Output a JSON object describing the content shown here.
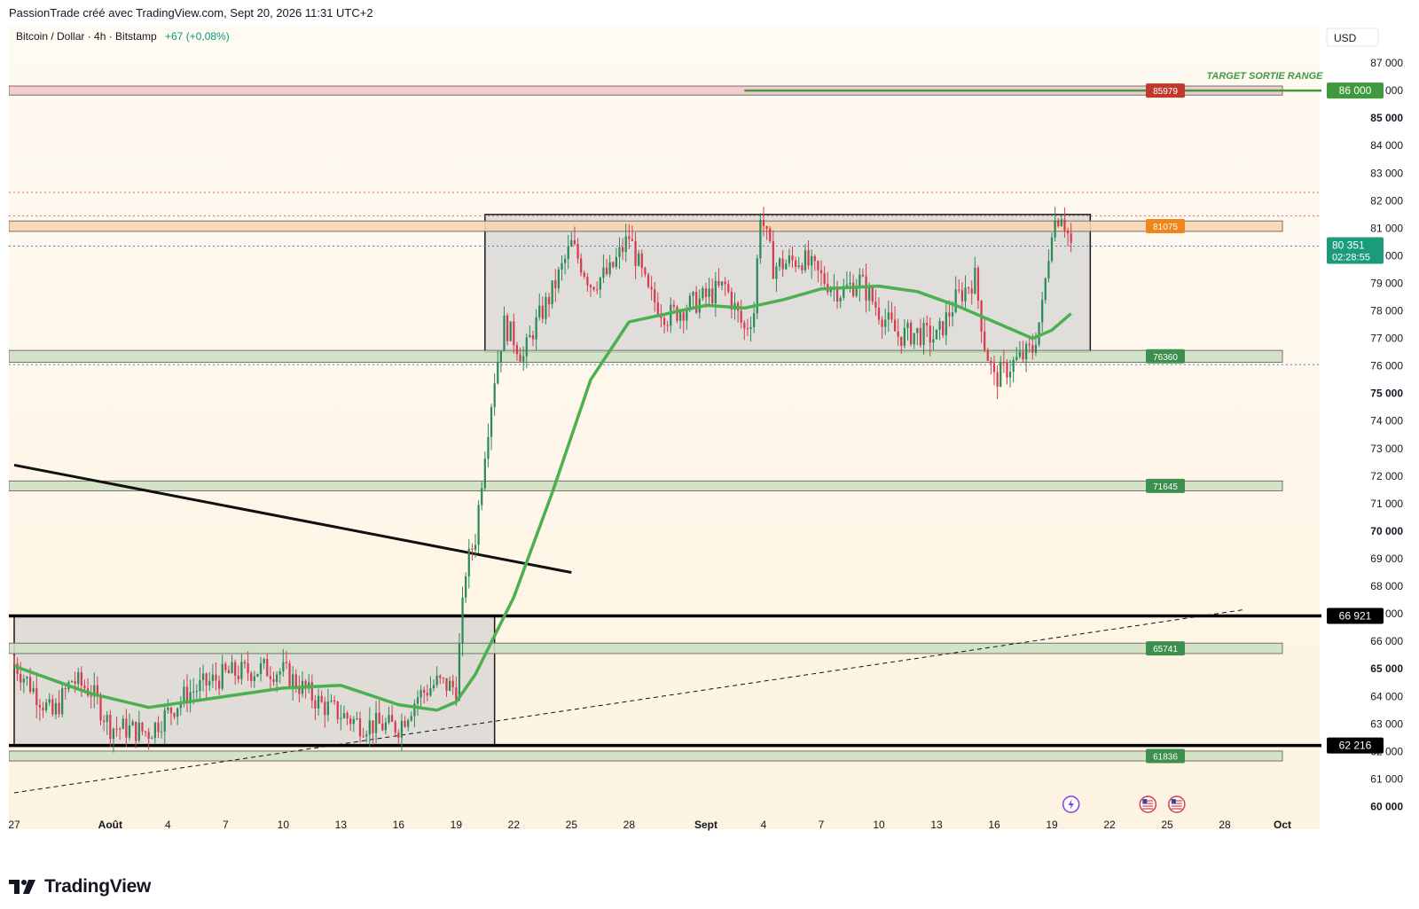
{
  "header": {
    "attribution": "PassionTrade créé avec TradingView.com, Sept 20, 2026 11:31 UTC+2"
  },
  "footer": {
    "logo_text": "TradingView"
  },
  "colors": {
    "background": "#fdf3e1",
    "candle_up": "#2c8a56",
    "candle_down": "#d63b4e",
    "moving_average": "#4caf50",
    "zone_green": "#cfe0c4",
    "zone_red": "#f2c7cc",
    "zone_orange": "#f7d5b4",
    "range_box": "#d3d3d3",
    "target_line": "#3f9a3f",
    "label_green": "#3c8f4d",
    "label_red": "#c0392b",
    "label_orange": "#f0851a",
    "current_price": "#1b9b7a"
  },
  "chart_data": {
    "type": "candlestick",
    "symbol": "Bitcoin / Dollar · 4h · Bitstamp",
    "change": "+67 (+0,08%)",
    "currency": "USD",
    "y_axis": {
      "ylim": [
        59500,
        88000
      ],
      "ticks": [
        60000,
        61000,
        62000,
        63000,
        64000,
        65000,
        66000,
        67000,
        68000,
        69000,
        70000,
        71000,
        72000,
        73000,
        74000,
        75000,
        76000,
        77000,
        78000,
        79000,
        80000,
        81000,
        82000,
        83000,
        84000,
        85000,
        86000,
        87000
      ],
      "bold_ticks": [
        60000,
        65000,
        70000,
        75000,
        85000
      ],
      "tick_format": "space-thousands"
    },
    "x_axis": {
      "start_date": "2026-07-27",
      "end_date": "2026-10-01",
      "ticks": [
        {
          "date": "2026-07-27",
          "label": "27",
          "bold": false
        },
        {
          "date": "2026-08-01",
          "label": "Août",
          "bold": true
        },
        {
          "date": "2026-08-04",
          "label": "4",
          "bold": false
        },
        {
          "date": "2026-08-07",
          "label": "7",
          "bold": false
        },
        {
          "date": "2026-08-10",
          "label": "10",
          "bold": false
        },
        {
          "date": "2026-08-13",
          "label": "13",
          "bold": false
        },
        {
          "date": "2026-08-16",
          "label": "16",
          "bold": false
        },
        {
          "date": "2026-08-19",
          "label": "19",
          "bold": false
        },
        {
          "date": "2026-08-22",
          "label": "22",
          "bold": false
        },
        {
          "date": "2026-08-25",
          "label": "25",
          "bold": false
        },
        {
          "date": "2026-08-28",
          "label": "28",
          "bold": false
        },
        {
          "date": "2026-09-01",
          "label": "Sept",
          "bold": true
        },
        {
          "date": "2026-09-04",
          "label": "4",
          "bold": false
        },
        {
          "date": "2026-09-07",
          "label": "7",
          "bold": false
        },
        {
          "date": "2026-09-10",
          "label": "10",
          "bold": false
        },
        {
          "date": "2026-09-13",
          "label": "13",
          "bold": false
        },
        {
          "date": "2026-09-16",
          "label": "16",
          "bold": false
        },
        {
          "date": "2026-09-19",
          "label": "19",
          "bold": false
        },
        {
          "date": "2026-09-22",
          "label": "22",
          "bold": false
        },
        {
          "date": "2026-09-25",
          "label": "25",
          "bold": false
        },
        {
          "date": "2026-09-28",
          "label": "28",
          "bold": false
        },
        {
          "date": "2026-10-01",
          "label": "Oct",
          "bold": true
        }
      ]
    },
    "price_path": [
      {
        "date": "2026-07-27",
        "price": 65200
      },
      {
        "date": "2026-07-29",
        "price": 63300
      },
      {
        "date": "2026-07-30",
        "price": 64600
      },
      {
        "date": "2026-07-31",
        "price": 64200
      },
      {
        "date": "2026-08-01",
        "price": 62900
      },
      {
        "date": "2026-08-03",
        "price": 62700
      },
      {
        "date": "2026-08-05",
        "price": 64100
      },
      {
        "date": "2026-08-07",
        "price": 64800
      },
      {
        "date": "2026-08-09",
        "price": 65000
      },
      {
        "date": "2026-08-10",
        "price": 64900
      },
      {
        "date": "2026-08-11",
        "price": 64300
      },
      {
        "date": "2026-08-12",
        "price": 63700
      },
      {
        "date": "2026-08-14",
        "price": 63000
      },
      {
        "date": "2026-08-16",
        "price": 62900
      },
      {
        "date": "2026-08-17",
        "price": 64000
      },
      {
        "date": "2026-08-18",
        "price": 64500
      },
      {
        "date": "2026-08-19",
        "price": 64300
      },
      {
        "date": "2026-08-19T12:00",
        "price": 68600
      },
      {
        "date": "2026-08-20",
        "price": 69800
      },
      {
        "date": "2026-08-20T12:00",
        "price": 73000
      },
      {
        "date": "2026-08-21",
        "price": 75600
      },
      {
        "date": "2026-08-21T12:00",
        "price": 77500
      },
      {
        "date": "2026-08-22",
        "price": 77000
      },
      {
        "date": "2026-08-22T12:00",
        "price": 76300
      },
      {
        "date": "2026-08-23",
        "price": 77300
      },
      {
        "date": "2026-08-24",
        "price": 78700
      },
      {
        "date": "2026-08-25",
        "price": 80400
      },
      {
        "date": "2026-08-26",
        "price": 79000
      },
      {
        "date": "2026-08-27",
        "price": 79400
      },
      {
        "date": "2026-08-28",
        "price": 80700
      },
      {
        "date": "2026-08-29",
        "price": 78600
      },
      {
        "date": "2026-08-30",
        "price": 77800
      },
      {
        "date": "2026-09-01",
        "price": 78500
      },
      {
        "date": "2026-09-02",
        "price": 78900
      },
      {
        "date": "2026-09-03",
        "price": 77300
      },
      {
        "date": "2026-09-03T12:00",
        "price": 78000
      },
      {
        "date": "2026-09-03T20:00",
        "price": 81600
      },
      {
        "date": "2026-09-04",
        "price": 81100
      },
      {
        "date": "2026-09-04T12:00",
        "price": 79600
      },
      {
        "date": "2026-09-06",
        "price": 79900
      },
      {
        "date": "2026-09-07",
        "price": 79200
      },
      {
        "date": "2026-09-08",
        "price": 78700
      },
      {
        "date": "2026-09-09",
        "price": 79100
      },
      {
        "date": "2026-09-10",
        "price": 78000
      },
      {
        "date": "2026-09-11",
        "price": 77100
      },
      {
        "date": "2026-09-12",
        "price": 77200
      },
      {
        "date": "2026-09-13",
        "price": 77000
      },
      {
        "date": "2026-09-14",
        "price": 78400
      },
      {
        "date": "2026-09-15",
        "price": 79200
      },
      {
        "date": "2026-09-15T12:00",
        "price": 76800
      },
      {
        "date": "2026-09-16",
        "price": 75500
      },
      {
        "date": "2026-09-16T12:00",
        "price": 75800
      },
      {
        "date": "2026-09-17",
        "price": 76100
      },
      {
        "date": "2026-09-18",
        "price": 76600
      },
      {
        "date": "2026-09-18T12:00",
        "price": 78100
      },
      {
        "date": "2026-09-19",
        "price": 81100
      },
      {
        "date": "2026-09-19T12:00",
        "price": 81600
      },
      {
        "date": "2026-09-20",
        "price": 80400
      }
    ],
    "moving_average": [
      {
        "date": "2026-07-27",
        "price": 65100
      },
      {
        "date": "2026-07-31",
        "price": 64100
      },
      {
        "date": "2026-08-03",
        "price": 63600
      },
      {
        "date": "2026-08-06",
        "price": 63900
      },
      {
        "date": "2026-08-10",
        "price": 64300
      },
      {
        "date": "2026-08-13",
        "price": 64400
      },
      {
        "date": "2026-08-16",
        "price": 63700
      },
      {
        "date": "2026-08-18",
        "price": 63500
      },
      {
        "date": "2026-08-19",
        "price": 63800
      },
      {
        "date": "2026-08-20",
        "price": 64800
      },
      {
        "date": "2026-08-22",
        "price": 67600
      },
      {
        "date": "2026-08-24",
        "price": 71400
      },
      {
        "date": "2026-08-26",
        "price": 75500
      },
      {
        "date": "2026-08-28",
        "price": 77600
      },
      {
        "date": "2026-09-01",
        "price": 78200
      },
      {
        "date": "2026-09-03",
        "price": 78100
      },
      {
        "date": "2026-09-05",
        "price": 78400
      },
      {
        "date": "2026-09-07",
        "price": 78800
      },
      {
        "date": "2026-09-10",
        "price": 78900
      },
      {
        "date": "2026-09-12",
        "price": 78700
      },
      {
        "date": "2026-09-14",
        "price": 78200
      },
      {
        "date": "2026-09-16",
        "price": 77600
      },
      {
        "date": "2026-09-18",
        "price": 77000
      },
      {
        "date": "2026-09-19",
        "price": 77300
      },
      {
        "date": "2026-09-20",
        "price": 77900
      }
    ],
    "zones": [
      {
        "name": "resistance-red",
        "low": 85900,
        "high": 86100,
        "label": "85979",
        "label_color": "red",
        "fill": "red"
      },
      {
        "name": "resistance-orange",
        "low": 80950,
        "high": 81200,
        "label": "81075",
        "label_color": "orange",
        "fill": "orange"
      },
      {
        "name": "support-76360",
        "low": 76200,
        "high": 76500,
        "label": "76360",
        "label_color": "green",
        "fill": "green"
      },
      {
        "name": "support-71645",
        "low": 71530,
        "high": 71760,
        "label": "71645",
        "label_color": "green",
        "fill": "green"
      },
      {
        "name": "support-65741",
        "low": 65620,
        "high": 65870,
        "label": "65741",
        "label_color": "green",
        "fill": "green"
      },
      {
        "name": "support-61836",
        "low": 61720,
        "high": 61950,
        "label": "61836",
        "label_color": "green",
        "fill": "green"
      }
    ],
    "range_boxes": [
      {
        "name": "upper-range",
        "start": "2026-08-20T12:00",
        "end": "2026-09-21",
        "low": 76500,
        "high": 81500
      },
      {
        "name": "lower-range",
        "start": "2026-07-27",
        "end": "2026-08-21",
        "low": 62200,
        "high": 66900
      }
    ],
    "horizontal_lines": [
      {
        "name": "level-66921",
        "price": 66921,
        "label": "66 921",
        "style": "black"
      },
      {
        "name": "level-62216",
        "price": 62216,
        "label": "62 216",
        "style": "black"
      },
      {
        "name": "target-86000",
        "price": 86000,
        "label": "86 000",
        "style": "green",
        "start": "2026-09-03"
      }
    ],
    "dotted_levels": [
      {
        "price": 82300,
        "color": "red"
      },
      {
        "price": 81450,
        "color": "red"
      },
      {
        "price": 80351,
        "color": "blue"
      },
      {
        "price": 76050,
        "color": "blue"
      }
    ],
    "trendlines": [
      {
        "name": "descending-trendline",
        "from": {
          "date": "2026-07-27",
          "price": 72400
        },
        "to": {
          "date": "2026-08-25",
          "price": 68500
        },
        "style": "solid"
      },
      {
        "name": "ascending-trendline",
        "from": {
          "date": "2026-07-27",
          "price": 60500
        },
        "to": {
          "date": "2026-09-29",
          "price": 67150
        },
        "style": "dashed"
      }
    ],
    "annotations": [
      {
        "text": "TARGET SORTIE RANGE",
        "date": "2026-09-24",
        "price": 86300
      }
    ],
    "current_price": {
      "value": "80 351",
      "countdown": "02:28:55",
      "price": 80351
    },
    "event_markers": [
      {
        "date": "2026-09-20",
        "kind": "lightning"
      },
      {
        "date": "2026-09-24",
        "kind": "flag-us"
      },
      {
        "date": "2026-09-25T12:00",
        "kind": "flag-us"
      }
    ]
  }
}
